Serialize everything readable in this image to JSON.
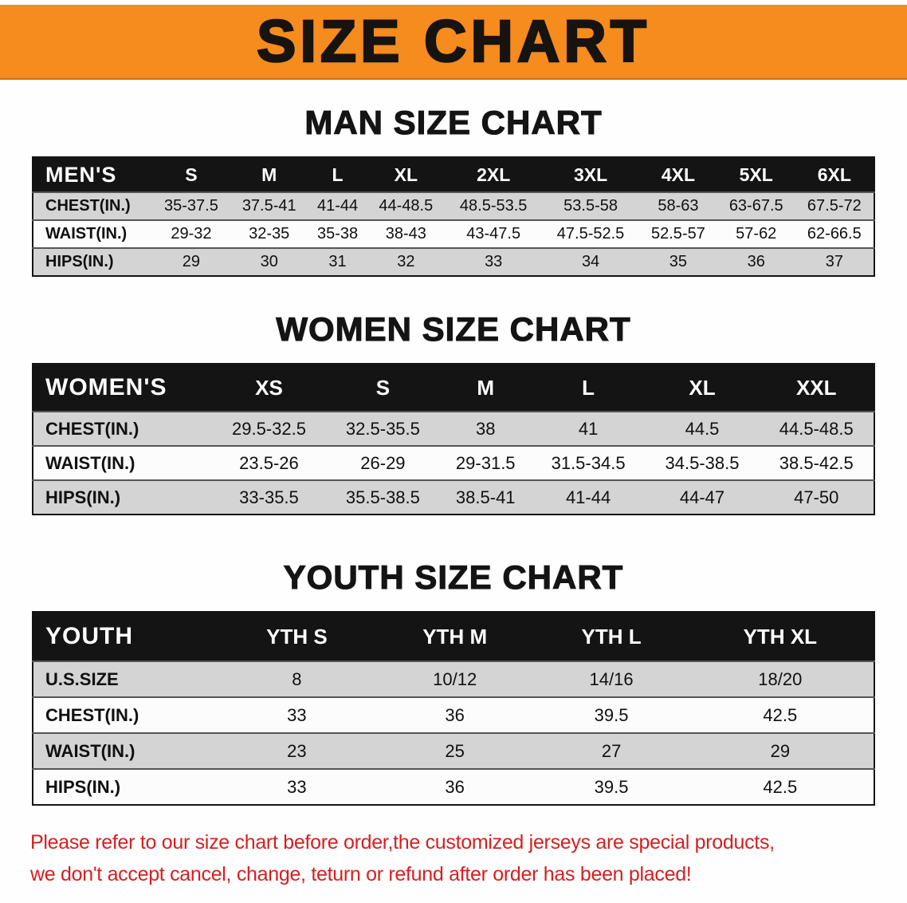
{
  "banner": {
    "title": "SIZE CHART"
  },
  "colors": {
    "banner_bg": "#f68b1e",
    "header_black": "#141414",
    "row_shaded": "#d4d4d4",
    "notice_red": "#d81e1e"
  },
  "sections": [
    {
      "heading": "MAN SIZE CHART",
      "table": {
        "header_label": "MEN'S",
        "columns": [
          "S",
          "M",
          "L",
          "XL",
          "2XL",
          "3XL",
          "4XL",
          "5XL",
          "6XL"
        ],
        "rows": [
          {
            "label": "CHEST(IN.)",
            "values": [
              "35-37.5",
              "37.5-41",
              "41-44",
              "44-48.5",
              "48.5-53.5",
              "53.5-58",
              "58-63",
              "63-67.5",
              "67.5-72"
            ]
          },
          {
            "label": "WAIST(IN.)",
            "values": [
              "29-32",
              "32-35",
              "35-38",
              "38-43",
              "43-47.5",
              "47.5-52.5",
              "52.5-57",
              "57-62",
              "62-66.5"
            ]
          },
          {
            "label": "HIPS(IN.)",
            "values": [
              "29",
              "30",
              "31",
              "32",
              "33",
              "34",
              "35",
              "36",
              "37"
            ]
          }
        ]
      }
    },
    {
      "heading": "WOMEN SIZE CHART",
      "table": {
        "header_label": "WOMEN'S",
        "columns": [
          "XS",
          "S",
          "M",
          "L",
          "XL",
          "XXL"
        ],
        "rows": [
          {
            "label": "CHEST(IN.)",
            "values": [
              "29.5-32.5",
              "32.5-35.5",
              "38",
              "41",
              "44.5",
              "44.5-48.5"
            ]
          },
          {
            "label": "WAIST(IN.)",
            "values": [
              "23.5-26",
              "26-29",
              "29-31.5",
              "31.5-34.5",
              "34.5-38.5",
              "38.5-42.5"
            ]
          },
          {
            "label": "HIPS(IN.)",
            "values": [
              "33-35.5",
              "35.5-38.5",
              "38.5-41",
              "41-44",
              "44-47",
              "47-50"
            ]
          }
        ]
      }
    },
    {
      "heading": "YOUTH SIZE CHART",
      "table": {
        "header_label": "YOUTH",
        "columns": [
          "YTH S",
          "YTH M",
          "YTH L",
          "YTH XL"
        ],
        "rows": [
          {
            "label": "U.S.SIZE",
            "values": [
              "8",
              "10/12",
              "14/16",
              "18/20"
            ]
          },
          {
            "label": "CHEST(IN.)",
            "values": [
              "33",
              "36",
              "39.5",
              "42.5"
            ]
          },
          {
            "label": "WAIST(IN.)",
            "values": [
              "23",
              "25",
              "27",
              "29"
            ]
          },
          {
            "label": "HIPS(IN.)",
            "values": [
              "33",
              "36",
              "39.5",
              "42.5"
            ]
          }
        ]
      }
    }
  ],
  "footer": {
    "line1": "Please refer to our size chart before order,the customized jerseys are special products,",
    "line2": "we don't accept cancel, change, teturn or refund after order has been placed!"
  }
}
